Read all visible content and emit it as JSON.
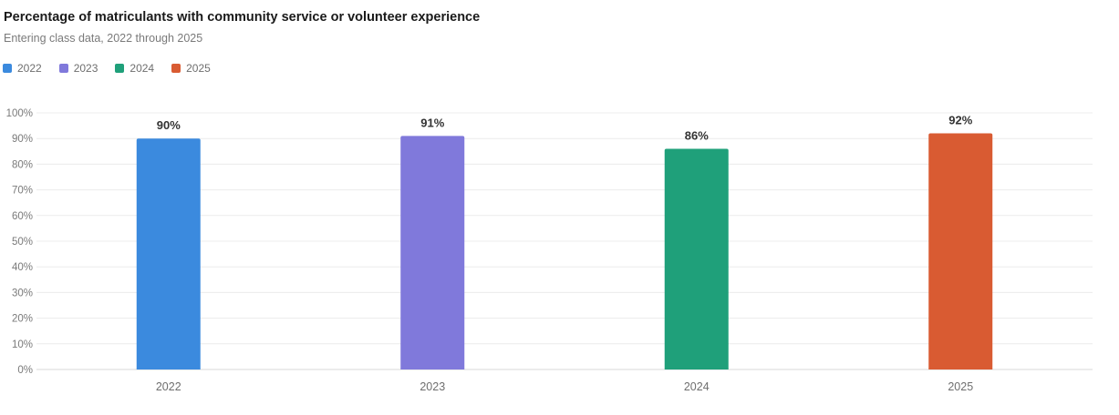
{
  "chart_data": {
    "type": "bar",
    "title": "Percentage of matriculants with community service or volunteer experience",
    "subtitle": "Entering class data, 2022 through 2025",
    "categories": [
      "2022",
      "2023",
      "2024",
      "2025"
    ],
    "values": [
      90,
      91,
      86,
      92
    ],
    "data_labels": [
      "90%",
      "91%",
      "86%",
      "92%"
    ],
    "colors": [
      "#3b8ade",
      "#8079db",
      "#1fa07a",
      "#d95b32"
    ],
    "legend": [
      {
        "label": "2022",
        "color": "#3b8ade"
      },
      {
        "label": "2023",
        "color": "#8079db"
      },
      {
        "label": "2024",
        "color": "#1fa07a"
      },
      {
        "label": "2025",
        "color": "#d95b32"
      }
    ],
    "legend_position": "top-left",
    "ylim": [
      0,
      100
    ],
    "yticks": [
      0,
      10,
      20,
      30,
      40,
      50,
      60,
      70,
      80,
      90,
      100
    ],
    "ytick_labels": [
      "0%",
      "10%",
      "20%",
      "30%",
      "40%",
      "50%",
      "60%",
      "70%",
      "80%",
      "90%",
      "100%"
    ],
    "xlabel": "",
    "ylabel": "",
    "grid": true
  }
}
